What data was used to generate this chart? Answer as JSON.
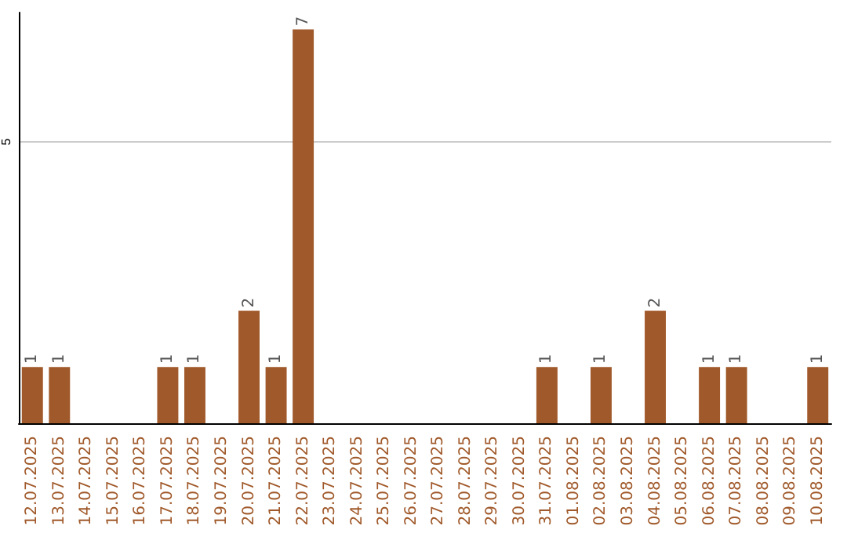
{
  "chart_data": {
    "type": "bar",
    "categories": [
      "12.07.2025",
      "13.07.2025",
      "14.07.2025",
      "15.07.2025",
      "16.07.2025",
      "17.07.2025",
      "18.07.2025",
      "19.07.2025",
      "20.07.2025",
      "21.07.2025",
      "22.07.2025",
      "23.07.2025",
      "24.07.2025",
      "25.07.2025",
      "26.07.2025",
      "27.07.2025",
      "28.07.2025",
      "29.07.2025",
      "30.07.2025",
      "31.07.2025",
      "01.08.2025",
      "02.08.2025",
      "03.08.2025",
      "04.08.2025",
      "05.08.2025",
      "06.08.2025",
      "07.08.2025",
      "08.08.2025",
      "09.08.2025",
      "10.08.2025"
    ],
    "values": [
      1,
      1,
      0,
      0,
      0,
      1,
      1,
      0,
      2,
      1,
      7,
      0,
      0,
      0,
      0,
      0,
      0,
      0,
      0,
      1,
      0,
      1,
      0,
      2,
      0,
      1,
      1,
      0,
      0,
      1
    ],
    "value_labels": [
      "1",
      "1",
      null,
      null,
      null,
      "1",
      "1",
      null,
      "2",
      "1",
      "7",
      null,
      null,
      null,
      null,
      null,
      null,
      null,
      null,
      "1",
      null,
      "1",
      null,
      "2",
      null,
      "1",
      "1",
      null,
      null,
      "1"
    ],
    "color": "#a0592a",
    "ylim": [
      0,
      7.3
    ],
    "yticks": [
      5
    ],
    "grid": "y"
  }
}
